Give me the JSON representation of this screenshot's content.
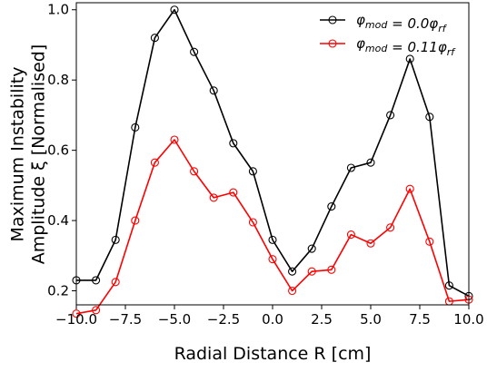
{
  "chart_data": {
    "type": "line",
    "title": "",
    "xlabel": "Radial Distance R [cm]",
    "ylabel_line1": "Maximum Instability",
    "ylabel_line2": "Amplitude ξ [Normalised]",
    "xlim": [
      -10.0,
      10.0
    ],
    "ylim": [
      0.16,
      1.02
    ],
    "xticks": [
      -10.0,
      -7.5,
      -5.0,
      -2.5,
      0.0,
      2.5,
      5.0,
      7.5,
      10.0
    ],
    "xtick_labels": [
      "−10.0",
      "−7.5",
      "−5.0",
      "−2.5",
      "0.0",
      "2.5",
      "5.0",
      "7.5",
      "10.0"
    ],
    "yticks": [
      0.2,
      0.4,
      0.6,
      0.8,
      1.0
    ],
    "ytick_labels": [
      "0.2",
      "0.4",
      "0.6",
      "0.8",
      "1.0"
    ],
    "grid": false,
    "legend_position": "top-right",
    "x": [
      -10,
      -9,
      -8,
      -7,
      -6,
      -5,
      -4,
      -3,
      -2,
      -1,
      0,
      1,
      2,
      3,
      4,
      5,
      6,
      7,
      8,
      9,
      10
    ],
    "series": [
      {
        "name": "φmod = 0.0φrf",
        "legend_label": "φ_mod = 0.0φ_rf",
        "color": "#000000",
        "values": [
          0.23,
          0.23,
          0.345,
          0.665,
          0.92,
          1.0,
          0.88,
          0.77,
          0.62,
          0.54,
          0.345,
          0.255,
          0.32,
          0.44,
          0.55,
          0.565,
          0.7,
          0.86,
          0.695,
          0.215,
          0.185
        ]
      },
      {
        "name": "φmod = 0.11φrf",
        "legend_label": "φ_mod = 0.11φ_rf",
        "color": "#ff0000",
        "values": [
          0.135,
          0.145,
          0.225,
          0.4,
          0.565,
          0.63,
          0.54,
          0.465,
          0.48,
          0.395,
          0.29,
          0.2,
          0.255,
          0.26,
          0.36,
          0.335,
          0.38,
          0.49,
          0.34,
          0.17,
          0.175
        ]
      }
    ]
  }
}
